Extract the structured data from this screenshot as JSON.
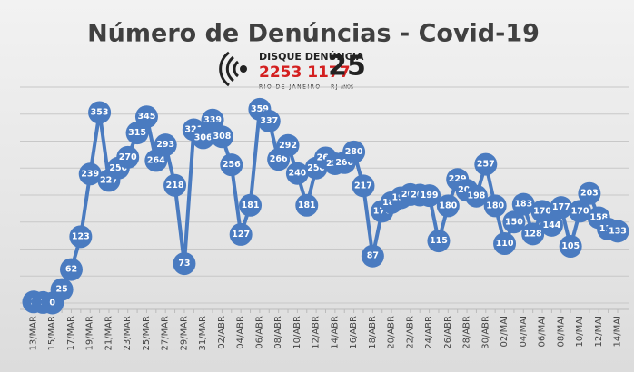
{
  "chart_data": {
    "type": "line",
    "title": "Número de Denúncias - Covid-19",
    "logo": {
      "name": "DISQUE DENÚNCIA",
      "phone": "2253 1177",
      "place": "RIO DE JANEIRO - RJ",
      "years": "25",
      "years_label": "ANOS"
    },
    "categories": [
      "13/MAR",
      null,
      "15/MAR",
      null,
      "17/MAR",
      null,
      "19/MAR",
      null,
      "21/MAR",
      null,
      "23/MAR",
      null,
      "25/MAR",
      null,
      "27/MAR",
      null,
      "29/MAR",
      null,
      "31/MAR",
      null,
      "02/ABR",
      null,
      "04/ABR",
      null,
      "06/ABR",
      null,
      "08/ABR",
      null,
      "10/ABR",
      null,
      "12/ABR",
      null,
      "14/ABR",
      null,
      "16/ABR",
      null,
      "18/ABR",
      null,
      "20/ABR",
      null,
      "22/ABR",
      null,
      "24/ABR",
      null,
      "26/ABR",
      null,
      "28/ABR",
      null,
      "30/ABR",
      null,
      "02/MAI",
      null,
      "04/MAI",
      null,
      "06/MAI",
      null,
      "08/MAI",
      null,
      "10/MAI",
      null,
      "12/MAI",
      null,
      "14/MAI"
    ],
    "values": [
      2,
      1,
      0,
      25,
      62,
      123,
      239,
      353,
      227,
      250,
      270,
      315,
      345,
      264,
      293,
      218,
      73,
      321,
      306,
      339,
      308,
      256,
      127,
      181,
      359,
      337,
      266,
      292,
      240,
      181,
      250,
      269,
      258,
      260,
      280,
      217,
      87,
      170,
      186,
      195,
      201,
      200,
      199,
      115,
      180,
      229,
      209,
      198,
      257,
      180,
      110,
      150,
      183,
      128,
      170,
      144,
      177,
      105,
      170,
      203,
      158,
      137,
      133
    ],
    "color": "#4a7bc0",
    "ylim": [
      0,
      400
    ],
    "yticks": [
      0,
      50,
      100,
      150,
      200,
      250,
      300,
      350,
      400
    ],
    "grid": true
  }
}
